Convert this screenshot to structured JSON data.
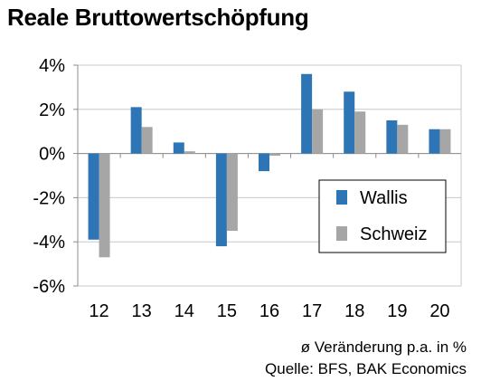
{
  "title": "Reale Bruttowertschöpfung",
  "footnote_unit": "ø Veränderung p.a. in %",
  "footnote_source": "Quelle: BFS, BAK Economics",
  "colors": {
    "Wallis": "#2e75b6",
    "Schweiz": "#a6a6a6"
  },
  "chart_data": {
    "type": "bar",
    "title": "Reale Bruttowertschöpfung",
    "categories": [
      "12",
      "13",
      "14",
      "15",
      "16",
      "17",
      "18",
      "19",
      "20"
    ],
    "series": [
      {
        "name": "Wallis",
        "values": [
          -3.9,
          2.1,
          0.5,
          -4.2,
          -0.8,
          3.6,
          2.8,
          1.5,
          1.1
        ]
      },
      {
        "name": "Schweiz",
        "values": [
          -4.7,
          1.2,
          0.1,
          -3.5,
          -0.1,
          2.0,
          1.9,
          1.3,
          1.1
        ]
      }
    ],
    "yticks": [
      "4%",
      "2%",
      "0%",
      "-2%",
      "-4%",
      "-6%"
    ],
    "ylim": [
      -6,
      4
    ],
    "ylabel": "",
    "xlabel": "",
    "grid": true,
    "legend_position": "right"
  }
}
